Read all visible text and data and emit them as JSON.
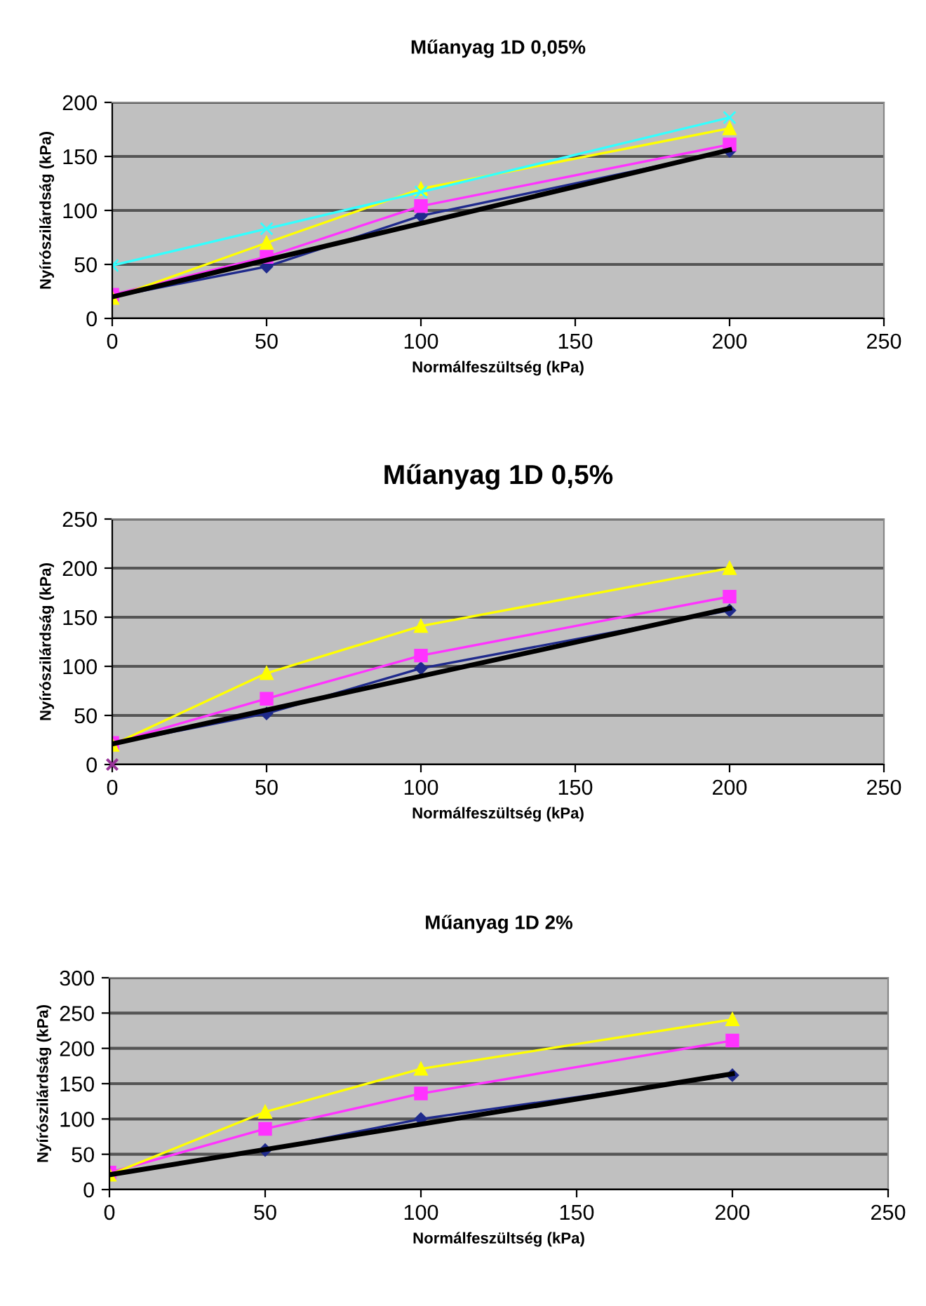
{
  "chart_data": [
    {
      "type": "line",
      "title": "Műanyag 1D 0,05%",
      "xlabel": "Normálfeszültség (kPa)",
      "ylabel": "Nyírószilárdság (kPa)",
      "xlim": [
        0,
        250
      ],
      "xticks": [
        0,
        50,
        100,
        150,
        200,
        250
      ],
      "ylim": [
        0,
        200
      ],
      "yticks": [
        0,
        50,
        100,
        150,
        200
      ],
      "grid": "y",
      "legend": false,
      "series": [
        {
          "color": "#1f2a8c",
          "marker": "diamond",
          "x": [
            0,
            50,
            100,
            200
          ],
          "values": [
            20,
            48,
            95,
            155
          ]
        },
        {
          "color": "#ff33ff",
          "marker": "square",
          "x": [
            0,
            50,
            100,
            200
          ],
          "values": [
            22,
            57,
            104,
            161
          ]
        },
        {
          "color": "#ffff00",
          "marker": "triangle",
          "x": [
            0,
            50,
            100,
            200
          ],
          "values": [
            19,
            70,
            120,
            176
          ]
        },
        {
          "color": "#33ffff",
          "marker": "cross",
          "x": [
            0,
            50,
            100,
            200
          ],
          "values": [
            49,
            83,
            117,
            186
          ]
        },
        {
          "color": "#000000",
          "marker": "none",
          "x": [
            0,
            200
          ],
          "values": [
            20,
            156
          ]
        }
      ]
    },
    {
      "type": "line",
      "title": "Műanyag 1D 0,5%",
      "xlabel": "Normálfeszültség (kPa)",
      "ylabel": "Nyírószilárdság (kPa)",
      "xlim": [
        0,
        250
      ],
      "xticks": [
        0,
        50,
        100,
        150,
        200,
        250
      ],
      "ylim": [
        0,
        250
      ],
      "yticks": [
        0,
        50,
        100,
        150,
        200,
        250
      ],
      "grid": "y",
      "legend": false,
      "series": [
        {
          "color": "#1f2a8c",
          "marker": "diamond",
          "x": [
            0,
            50,
            100,
            200
          ],
          "values": [
            21,
            52,
            98,
            157
          ]
        },
        {
          "color": "#ff33ff",
          "marker": "square",
          "x": [
            0,
            50,
            100,
            200
          ],
          "values": [
            22,
            67,
            111,
            171
          ]
        },
        {
          "color": "#ffff00",
          "marker": "triangle",
          "x": [
            0,
            50,
            100,
            200
          ],
          "values": [
            20,
            93,
            141,
            200
          ]
        },
        {
          "type": "scatter",
          "color": "#993399",
          "marker": "cross",
          "x": [
            0
          ],
          "values": [
            0
          ]
        },
        {
          "color": "#000000",
          "marker": "none",
          "x": [
            0,
            200
          ],
          "values": [
            21,
            159
          ]
        }
      ]
    },
    {
      "type": "line",
      "title": "Műanyag 1D 2%",
      "xlabel": "Normálfeszültség (kPa)",
      "ylabel": "Nyírószilárdság (kPa)",
      "xlim": [
        0,
        250
      ],
      "xticks": [
        0,
        50,
        100,
        150,
        200,
        250
      ],
      "ylim": [
        0,
        300
      ],
      "yticks": [
        0,
        50,
        100,
        150,
        200,
        250,
        300
      ],
      "grid": "y",
      "legend": false,
      "series": [
        {
          "color": "#1f2a8c",
          "marker": "diamond",
          "x": [
            0,
            50,
            100,
            200
          ],
          "values": [
            22,
            56,
            100,
            162
          ]
        },
        {
          "color": "#ff33ff",
          "marker": "square",
          "x": [
            0,
            50,
            100,
            200
          ],
          "values": [
            24,
            86,
            136,
            211
          ]
        },
        {
          "color": "#ffff00",
          "marker": "triangle",
          "x": [
            0,
            50,
            100,
            200
          ],
          "values": [
            21,
            110,
            171,
            241
          ]
        },
        {
          "color": "#000000",
          "marker": "none",
          "x": [
            0,
            200
          ],
          "values": [
            21,
            164
          ]
        }
      ]
    }
  ]
}
